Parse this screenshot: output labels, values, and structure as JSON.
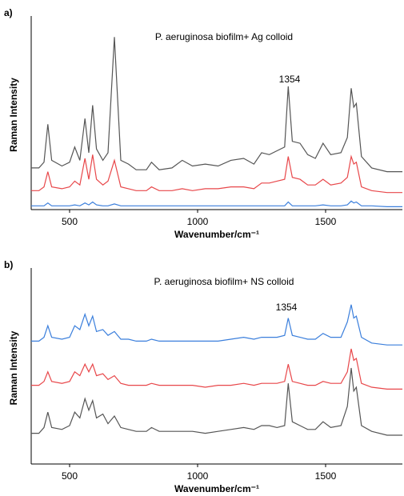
{
  "chart_data": [
    {
      "type": "line",
      "panel_label": "a)",
      "title": "P. aeruginosa biofilm+ Ag colloid",
      "xlabel": "Wavenumber/cm⁻¹",
      "ylabel": "Raman Intensity",
      "annotations": [
        "1354"
      ],
      "xlim": [
        350,
        1800
      ],
      "xticks": [
        500,
        1000,
        1500
      ],
      "ylim": [
        0,
        100
      ],
      "x": [
        350,
        380,
        400,
        415,
        430,
        470,
        500,
        520,
        540,
        560,
        575,
        590,
        605,
        630,
        650,
        675,
        700,
        730,
        760,
        800,
        820,
        850,
        900,
        940,
        980,
        1030,
        1080,
        1130,
        1180,
        1220,
        1250,
        1280,
        1310,
        1340,
        1354,
        1370,
        1400,
        1430,
        1460,
        1490,
        1520,
        1560,
        1585,
        1600,
        1610,
        1620,
        1640,
        1680,
        1740,
        1800
      ],
      "series": [
        {
          "color": "#555555",
          "values": [
            22,
            22,
            25,
            45,
            26,
            23,
            25,
            33,
            26,
            48,
            30,
            55,
            32,
            26,
            30,
            91,
            26,
            24,
            21,
            21,
            25,
            21,
            22,
            26,
            23,
            24,
            23,
            26,
            27,
            24,
            30,
            29,
            31,
            33,
            65,
            36,
            35,
            29,
            27,
            35,
            29,
            30,
            38,
            64,
            54,
            56,
            28,
            22,
            20,
            20
          ]
        },
        {
          "color": "#e8474a",
          "values": [
            10,
            10,
            12,
            20,
            12,
            11,
            12,
            15,
            13,
            27,
            16,
            29,
            16,
            13,
            15,
            26,
            12,
            11,
            10,
            10,
            12,
            10,
            10,
            11,
            10,
            11,
            11,
            12,
            12,
            11,
            14,
            14,
            15,
            16,
            28,
            17,
            16,
            13,
            13,
            16,
            13,
            14,
            17,
            28,
            24,
            25,
            12,
            10,
            9,
            9
          ]
        },
        {
          "color": "#3b7fdc",
          "values": [
            2,
            2,
            2,
            3.5,
            2,
            2,
            2,
            2.5,
            2,
            3.5,
            2.5,
            4,
            2.5,
            2,
            2,
            3,
            2,
            2,
            2,
            2,
            2,
            2,
            2,
            2,
            2,
            2,
            2,
            2,
            2,
            2,
            2,
            2,
            2,
            2,
            4,
            2,
            2,
            2,
            2,
            2.5,
            2,
            2,
            2.5,
            4.5,
            3.5,
            4,
            2,
            2,
            1.5,
            1.5
          ]
        }
      ]
    },
    {
      "type": "line",
      "panel_label": "b)",
      "title": "P. aeruginosa biofilm+ NS colloid",
      "xlabel": "Wavenumber/cm⁻¹",
      "ylabel": "Raman Intensity",
      "annotations": [
        "1354"
      ],
      "xlim": [
        350,
        1800
      ],
      "xticks": [
        500,
        1000,
        1500
      ],
      "ylim": [
        0,
        100
      ],
      "x": [
        350,
        380,
        400,
        415,
        430,
        470,
        500,
        520,
        540,
        560,
        575,
        590,
        605,
        630,
        650,
        675,
        700,
        730,
        760,
        800,
        820,
        850,
        900,
        940,
        980,
        1030,
        1080,
        1130,
        1180,
        1220,
        1250,
        1280,
        1310,
        1340,
        1354,
        1370,
        1400,
        1430,
        1460,
        1490,
        1520,
        1560,
        1585,
        1600,
        1610,
        1620,
        1640,
        1680,
        1740,
        1800
      ],
      "series": [
        {
          "color": "#3b7fdc",
          "values": [
            64,
            64,
            66,
            72,
            66,
            65,
            66,
            72,
            70,
            78,
            72,
            77,
            69,
            70,
            67,
            69,
            65,
            65,
            64,
            64,
            65,
            64,
            64,
            64,
            64,
            64,
            64,
            65,
            66,
            65,
            66,
            66,
            66,
            67,
            76,
            67,
            66,
            65,
            65,
            68,
            66,
            66,
            74,
            83,
            76,
            77,
            66,
            63,
            62,
            62
          ]
        },
        {
          "color": "#e8474a",
          "values": [
            41,
            41,
            43,
            48,
            43,
            42,
            43,
            48,
            46,
            52,
            48,
            52,
            46,
            47,
            44,
            46,
            42,
            41,
            41,
            41,
            42,
            41,
            41,
            41,
            41,
            40,
            41,
            41,
            42,
            41,
            42,
            42,
            42,
            43,
            52,
            43,
            42,
            41,
            41,
            43,
            42,
            42,
            48,
            60,
            54,
            55,
            42,
            40,
            39,
            39
          ]
        },
        {
          "color": "#555555",
          "values": [
            16,
            16,
            19,
            27,
            19,
            18,
            20,
            27,
            24,
            34,
            28,
            33,
            24,
            26,
            21,
            25,
            19,
            18,
            17,
            17,
            19,
            17,
            17,
            17,
            17,
            16,
            17,
            18,
            19,
            18,
            20,
            20,
            19,
            20,
            42,
            22,
            20,
            18,
            18,
            22,
            19,
            20,
            30,
            50,
            38,
            40,
            20,
            17,
            15,
            15
          ]
        }
      ]
    }
  ]
}
